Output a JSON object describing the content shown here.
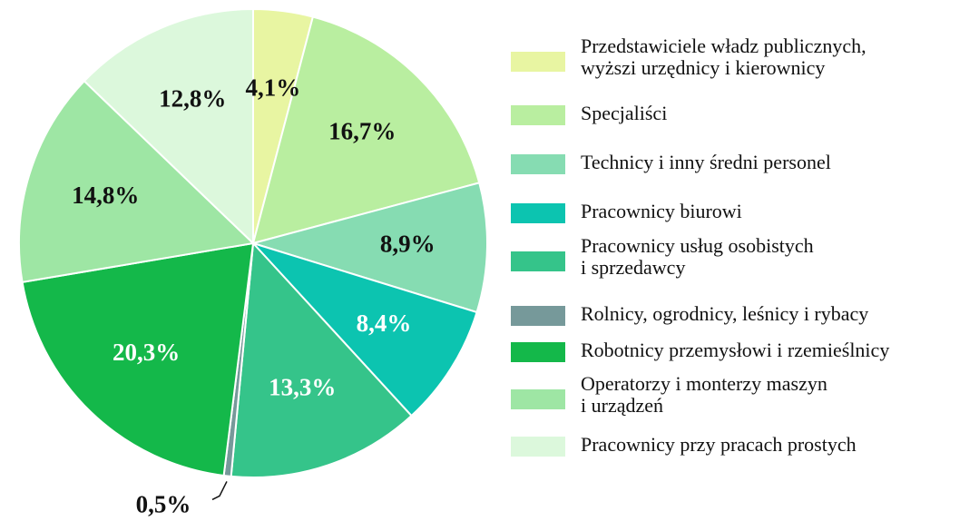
{
  "chart_data": {
    "type": "pie",
    "labels": [
      [
        "Przedstawiciele władz publicznych,",
        "wyższi urzędnicy i kierownicy"
      ],
      [
        "Specjaliści"
      ],
      [
        "Technicy i inny średni personel"
      ],
      [
        "Pracownicy biurowi"
      ],
      [
        "Pracownicy usług osobistych",
        "i sprzedawcy"
      ],
      [
        "Rolnicy, ogrodnicy, leśnicy i rybacy"
      ],
      [
        "Robotnicy przemysłowi i rzemieślnicy"
      ],
      [
        "Operatorzy i monterzy maszyn",
        "i urządzeń"
      ],
      [
        "Pracownicy przy pracach prostych"
      ]
    ],
    "values": [
      4.1,
      16.7,
      8.9,
      8.4,
      13.3,
      0.5,
      20.3,
      14.8,
      12.8
    ],
    "value_labels": [
      "4,1%",
      "16,7%",
      "8,9%",
      "8,4%",
      "13,3%",
      "0,5%",
      "20,3%",
      "14,8%",
      "12,8%"
    ],
    "colors": [
      "#e8f5a2",
      "#b9eea0",
      "#86dcb2",
      "#0cc4b0",
      "#35c48a",
      "#76999a",
      "#14b84a",
      "#9ee6a4",
      "#dcf8dc"
    ],
    "label_colors": [
      "#111",
      "#111",
      "#111",
      "#fff",
      "#fff",
      "#111",
      "#fff",
      "#111",
      "#111"
    ]
  }
}
